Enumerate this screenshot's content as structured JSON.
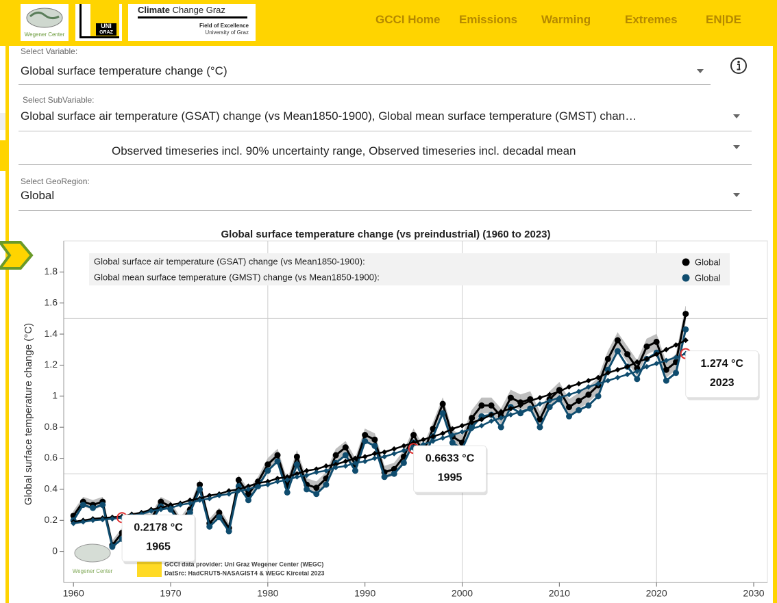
{
  "header": {
    "wegener": "Wegener Center",
    "uni": "UNI",
    "graz": "GRAZ",
    "logo_strong": "Climate",
    "logo_rest": "Change Graz",
    "logo_subtitle": "Field of Excellence",
    "logo_university": "University of Graz",
    "nav": [
      "GCCI Home",
      "Emissions",
      "Warming",
      "Extremes",
      "EN|DE"
    ]
  },
  "form": {
    "variable": {
      "label": "Select Variable:",
      "value": "Global surface temperature change (°C)"
    },
    "subvariable": {
      "label": "Select SubVariable:",
      "value": "Global surface air temperature (GSAT) change (vs Mean1850-1900), Global mean surface temperature (GMST) chan…"
    },
    "series_type": {
      "value": "Observed timeseries incl. 90% uncertainty range, Observed timeseries incl. decadal mean"
    },
    "georegion": {
      "label": "Select GeoRegion:",
      "value": "Global"
    }
  },
  "watermark": {
    "logo": "Wegener Center",
    "provider": "GCCI data provider: Uni Graz Wegener Center (WEGC)",
    "source": "DatSrc: HadCRUT5-NASAGIST4 & WEGC Kircetal 2023"
  },
  "chart_data": {
    "type": "line",
    "title": "Global surface temperature change (vs preindustrial) (1960 to 2023)",
    "y_label": "Global surface temperature change (°C)",
    "x": [
      1960,
      1961,
      1962,
      1963,
      1964,
      1965,
      1966,
      1967,
      1968,
      1969,
      1970,
      1971,
      1972,
      1973,
      1974,
      1975,
      1976,
      1977,
      1978,
      1979,
      1980,
      1981,
      1982,
      1983,
      1984,
      1985,
      1986,
      1987,
      1988,
      1989,
      1990,
      1991,
      1992,
      1993,
      1994,
      1995,
      1996,
      1997,
      1998,
      1999,
      2000,
      2001,
      2002,
      2003,
      2004,
      2005,
      2006,
      2007,
      2008,
      2009,
      2010,
      2011,
      2012,
      2013,
      2014,
      2015,
      2016,
      2017,
      2018,
      2019,
      2020,
      2021,
      2022,
      2023
    ],
    "series": [
      {
        "name": "Global",
        "legend": "Global surface air temperature (GSAT) change (vs Mean1850-1900):",
        "color": "#000000",
        "values": [
          0.23,
          0.32,
          0.3,
          0.32,
          0.04,
          0.12,
          0.2,
          0.22,
          0.21,
          0.32,
          0.29,
          0.19,
          0.27,
          0.43,
          0.18,
          0.25,
          0.15,
          0.46,
          0.37,
          0.45,
          0.56,
          0.62,
          0.42,
          0.61,
          0.43,
          0.41,
          0.47,
          0.62,
          0.67,
          0.56,
          0.75,
          0.72,
          0.51,
          0.53,
          0.61,
          0.75,
          0.64,
          0.79,
          0.95,
          0.74,
          0.7,
          0.86,
          0.94,
          0.94,
          0.87,
          0.99,
          0.96,
          0.98,
          0.85,
          0.98,
          1.04,
          0.93,
          0.97,
          1.01,
          1.07,
          1.24,
          1.36,
          1.27,
          1.18,
          1.32,
          1.35,
          1.17,
          1.22,
          1.53
        ],
        "uncertainty": [
          0.03,
          0.03,
          0.03,
          0.03,
          0.03,
          0.03,
          0.03,
          0.03,
          0.03,
          0.03,
          0.03,
          0.03,
          0.03,
          0.03,
          0.03,
          0.03,
          0.03,
          0.03,
          0.03,
          0.03,
          0.04,
          0.04,
          0.04,
          0.04,
          0.04,
          0.04,
          0.04,
          0.04,
          0.04,
          0.04,
          0.04,
          0.04,
          0.04,
          0.04,
          0.04,
          0.04,
          0.04,
          0.04,
          0.04,
          0.04,
          0.05,
          0.05,
          0.05,
          0.05,
          0.05,
          0.05,
          0.05,
          0.05,
          0.05,
          0.05,
          0.05,
          0.05,
          0.05,
          0.05,
          0.05,
          0.05,
          0.05,
          0.05,
          0.05,
          0.05,
          0.05,
          0.05,
          0.05,
          0.05
        ],
        "decadal_mean": [
          0.19,
          0.2,
          0.21,
          0.215,
          0.22,
          0.225,
          0.24,
          0.25,
          0.27,
          0.28,
          0.3,
          0.31,
          0.33,
          0.34,
          0.36,
          0.37,
          0.39,
          0.4,
          0.42,
          0.44,
          0.45,
          0.47,
          0.48,
          0.5,
          0.52,
          0.53,
          0.55,
          0.56,
          0.58,
          0.6,
          0.61,
          0.63,
          0.64,
          0.66,
          0.68,
          0.7,
          0.72,
          0.74,
          0.76,
          0.79,
          0.81,
          0.83,
          0.85,
          0.88,
          0.9,
          0.92,
          0.94,
          0.97,
          0.99,
          1.01,
          1.03,
          1.06,
          1.08,
          1.1,
          1.12,
          1.15,
          1.17,
          1.19,
          1.22,
          1.24,
          1.27,
          1.3,
          1.33,
          1.36
        ]
      },
      {
        "name": "Global",
        "legend": "Global mean surface temperature (GMST) change (vs Mean1850-1900):",
        "color": "#0f4c6e",
        "values": [
          0.2,
          0.3,
          0.28,
          0.3,
          0.03,
          0.08,
          0.16,
          0.18,
          0.19,
          0.29,
          0.27,
          0.18,
          0.25,
          0.4,
          0.16,
          0.22,
          0.13,
          0.42,
          0.33,
          0.42,
          0.52,
          0.58,
          0.38,
          0.56,
          0.4,
          0.37,
          0.43,
          0.57,
          0.62,
          0.52,
          0.71,
          0.68,
          0.48,
          0.5,
          0.57,
          0.7,
          0.59,
          0.74,
          0.89,
          0.7,
          0.66,
          0.8,
          0.87,
          0.88,
          0.8,
          0.93,
          0.89,
          0.92,
          0.8,
          0.93,
          0.98,
          0.87,
          0.91,
          0.94,
          1.0,
          1.17,
          1.29,
          1.19,
          1.11,
          1.24,
          1.28,
          1.1,
          1.15,
          1.43
        ],
        "decadal_mean": [
          0.18,
          0.19,
          0.2,
          0.205,
          0.21,
          0.2178,
          0.23,
          0.24,
          0.26,
          0.27,
          0.28,
          0.3,
          0.31,
          0.33,
          0.34,
          0.36,
          0.37,
          0.39,
          0.4,
          0.42,
          0.43,
          0.45,
          0.46,
          0.48,
          0.49,
          0.51,
          0.52,
          0.54,
          0.55,
          0.57,
          0.58,
          0.6,
          0.61,
          0.63,
          0.65,
          0.6633,
          0.69,
          0.71,
          0.73,
          0.75,
          0.77,
          0.79,
          0.81,
          0.84,
          0.86,
          0.88,
          0.9,
          0.92,
          0.95,
          0.97,
          0.99,
          1.01,
          1.03,
          1.06,
          1.08,
          1.1,
          1.12,
          1.14,
          1.16,
          1.19,
          1.21,
          1.23,
          1.25,
          1.274
        ]
      }
    ],
    "annotations": [
      {
        "x": 1965,
        "value": 0.2178,
        "label": "0.2178 °C"
      },
      {
        "x": 1995,
        "value": 0.6633,
        "label": "0.6633 °C"
      },
      {
        "x": 2023,
        "value": 1.274,
        "label": "1.274 °C"
      }
    ],
    "xlim": [
      1959,
      2030
    ],
    "xticks": [
      1960,
      1970,
      1980,
      1990,
      2000,
      2010,
      2020,
      2030
    ],
    "ylim": [
      -0.2,
      2.0
    ],
    "yticks": [
      0,
      0.2,
      0.4,
      0.6,
      0.8,
      1,
      1.2,
      1.4,
      1.6,
      1.8
    ],
    "xgrid": [
      1980,
      2000,
      2020
    ],
    "ygrid": [
      0.5,
      1.5
    ],
    "band_color": "#b0b0b0",
    "marker_color": "#e03030"
  }
}
